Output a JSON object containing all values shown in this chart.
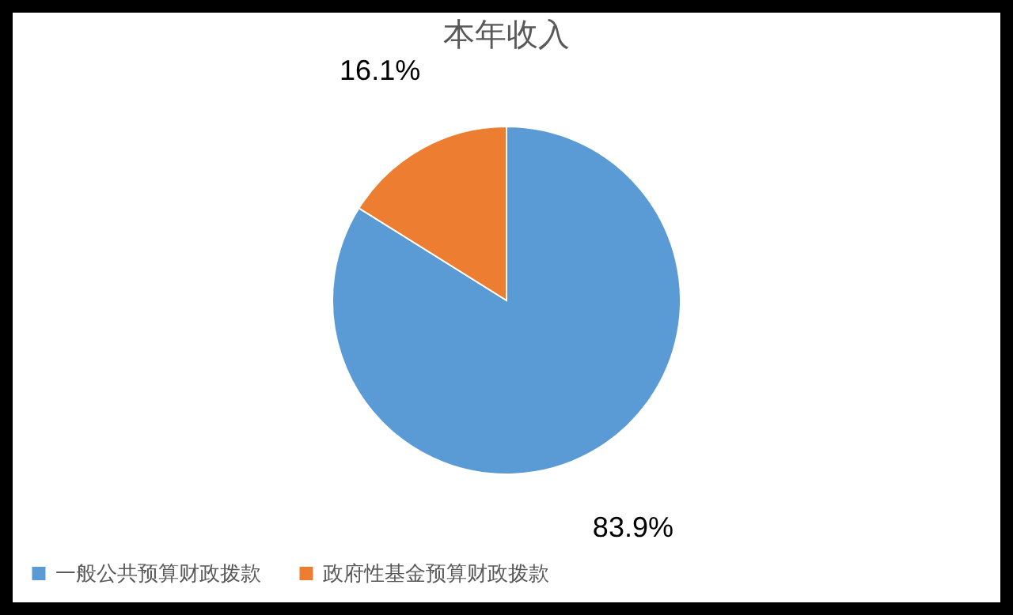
{
  "chart_data": {
    "type": "pie",
    "title": "本年收入",
    "categories": [
      "一般公共预算财政拨款",
      "政府性基金预算财政拨款"
    ],
    "values": [
      83.9,
      16.1
    ],
    "colors": [
      "#5b9bd5",
      "#ed7d31"
    ],
    "value_labels": [
      "83.9%",
      "16.1%"
    ],
    "legend": "bottom"
  }
}
